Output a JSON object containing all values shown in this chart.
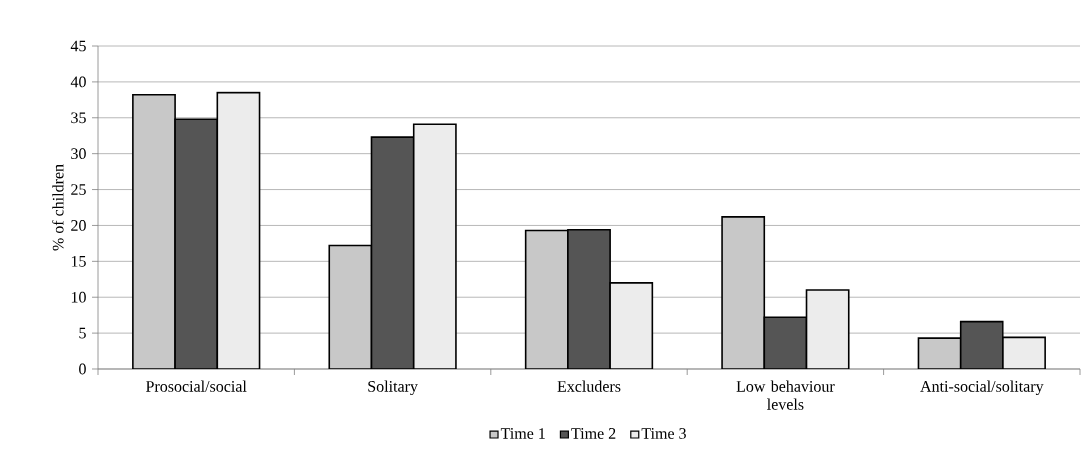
{
  "chart_data": {
    "type": "bar",
    "ylabel": "% of children",
    "categories": [
      "Prosocial/social",
      "Solitary",
      "Excluders",
      "Low behaviour levels",
      "Anti-social/solitary"
    ],
    "series": [
      {
        "name": "Time 1",
        "color": "#c8c8c8",
        "values": [
          38.2,
          17.2,
          19.3,
          21.2,
          4.3
        ]
      },
      {
        "name": "Time 2",
        "color": "#555555",
        "values": [
          34.8,
          32.3,
          19.4,
          7.2,
          6.6
        ]
      },
      {
        "name": "Time 3",
        "color": "#ececec",
        "values": [
          38.5,
          34.1,
          12.0,
          11.0,
          4.4
        ]
      }
    ],
    "ylim": [
      0,
      45
    ],
    "yticks": [
      0,
      5,
      10,
      15,
      20,
      25,
      30,
      35,
      40,
      45
    ],
    "grid": "y",
    "legend": "bottom"
  }
}
